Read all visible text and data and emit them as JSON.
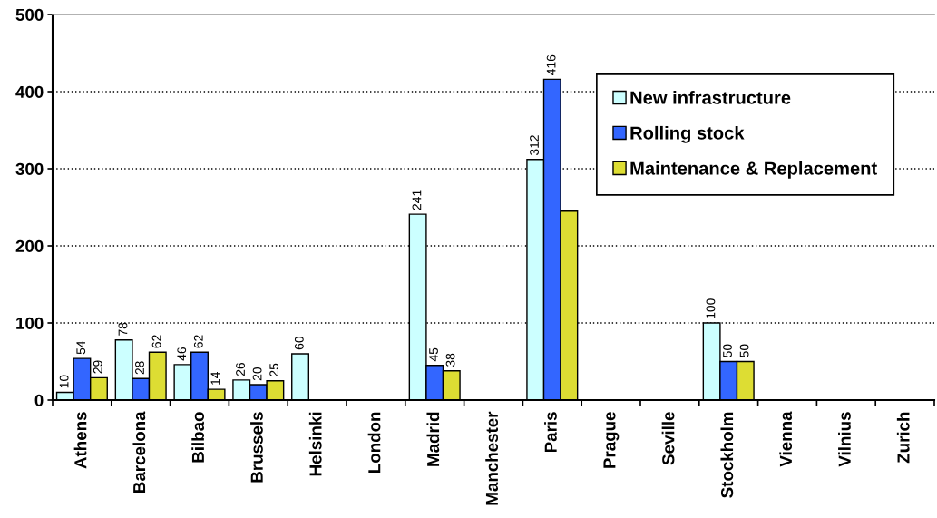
{
  "chart_data": {
    "type": "bar",
    "categories": [
      "Athens",
      "Barcelona",
      "Bilbao",
      "Brussels",
      "Helsinki",
      "London",
      "Madrid",
      "Manchester",
      "Paris",
      "Prague",
      "Seville",
      "Stockholm",
      "Vienna",
      "Vilnius",
      "Zurich"
    ],
    "series": [
      {
        "name": "New infrastructure",
        "color": "#ccffff",
        "values": [
          10,
          78,
          46,
          26,
          60,
          null,
          241,
          null,
          312,
          null,
          null,
          100,
          null,
          null,
          null
        ],
        "value_labels": [
          "10",
          "78",
          "46",
          "26",
          "60",
          null,
          "241",
          null,
          "312",
          null,
          null,
          "100",
          null,
          null,
          null
        ]
      },
      {
        "name": "Rolling stock",
        "color": "#3366ff",
        "values": [
          54,
          28,
          62,
          20,
          null,
          null,
          45,
          null,
          416,
          null,
          null,
          50,
          null,
          null,
          null
        ],
        "value_labels": [
          "54",
          "28",
          "62",
          "20",
          null,
          null,
          "45",
          null,
          "416",
          null,
          null,
          "50",
          null,
          null,
          null
        ]
      },
      {
        "name": "Maintenance & Replacement",
        "color": "#dddd33",
        "values": [
          29,
          62,
          14,
          25,
          null,
          null,
          38,
          null,
          245,
          null,
          null,
          50,
          null,
          null,
          null
        ],
        "value_labels": [
          "29",
          "62",
          "14",
          "25",
          null,
          null,
          "38",
          null,
          null,
          null,
          null,
          "50",
          null,
          null,
          null
        ]
      }
    ],
    "ylim": [
      0,
      500
    ],
    "yticks": [
      0,
      100,
      200,
      300,
      400,
      500
    ],
    "grid": "y",
    "legend": "top right"
  }
}
